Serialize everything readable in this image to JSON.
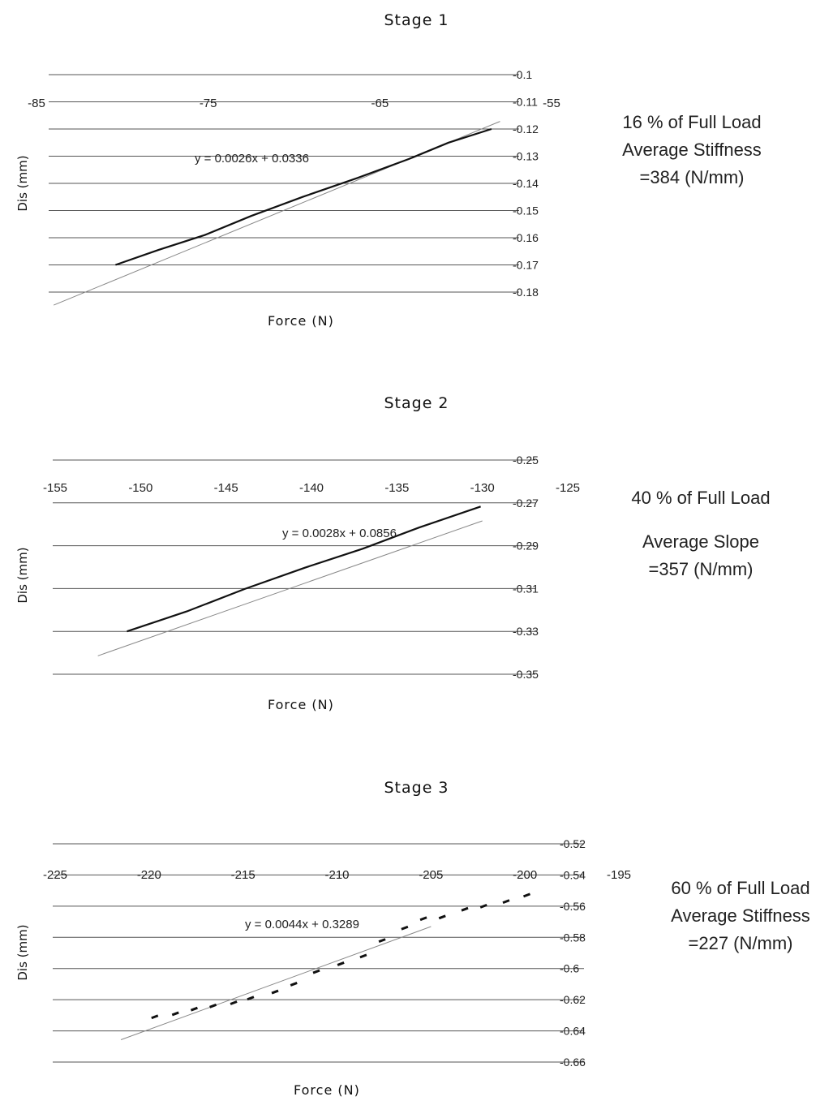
{
  "chart_data": [
    {
      "type": "line",
      "title": "Stage 1",
      "xlabel": "Force  (N)",
      "ylabel": "Dis (mm)",
      "xlim": [
        -85,
        -55
      ],
      "ylim": [
        -0.18,
        -0.1
      ],
      "x_ticks": [
        "-85",
        "-75",
        "-65",
        "-55"
      ],
      "y_ticks": [
        "-0.1",
        "-0.11",
        "-0.12",
        "-0.13",
        "-0.14",
        "-0.15",
        "-0.16",
        "-0.17",
        "-0.18"
      ],
      "trendline_label": "y = 0.0026x + 0.0336",
      "trendline": {
        "slope": 0.0026,
        "intercept": 0.0336,
        "x": [
          -84,
          -58
        ]
      },
      "series": [
        {
          "x": [
            -80.4,
            -77.9,
            -75.2,
            -72.5,
            -69.5,
            -66.3,
            -63.3,
            -61.0,
            -58.5
          ],
          "values": [
            -0.17,
            -0.1645,
            -0.159,
            -0.152,
            -0.145,
            -0.138,
            -0.131,
            -0.125,
            -0.12
          ]
        }
      ]
    },
    {
      "type": "line",
      "title": "Stage 2",
      "xlabel": "Force  (N)",
      "ylabel": "Dis (mm)",
      "xlim": [
        -155,
        -125
      ],
      "ylim": [
        -0.35,
        -0.25
      ],
      "x_ticks": [
        "-155",
        "-150",
        "-145",
        "-140",
        "-135",
        "-130",
        "-125"
      ],
      "y_ticks": [
        "-0.25",
        "-0.27",
        "-0.29",
        "-0.31",
        "-0.33",
        "-0.35"
      ],
      "trendline_label": "y = 0.0028x + 0.0856",
      "trendline": {
        "slope": 0.0028,
        "intercept": 0.0856,
        "x": [
          -152.5,
          -130
        ]
      },
      "series": [
        {
          "x": [
            -150.8,
            -147.3,
            -143.9,
            -140.4,
            -137.0,
            -133.7,
            -130.1
          ],
          "values": [
            -0.33,
            -0.3207,
            -0.3102,
            -0.3003,
            -0.2914,
            -0.2815,
            -0.2717
          ]
        }
      ]
    },
    {
      "type": "scatter",
      "title": "Stage 3",
      "xlabel": "Force  (N)",
      "ylabel": "Dis (mm)",
      "xlim": [
        -225,
        -195
      ],
      "ylim": [
        -0.66,
        -0.52
      ],
      "x_ticks": [
        "-225",
        "-220",
        "-215",
        "-210",
        "-205",
        "-200",
        "-195"
      ],
      "y_ticks": [
        "-0.52",
        "-0.54",
        "-0.56",
        "-0.58",
        "-0.6",
        "-0.62",
        "-0.64",
        "-0.66"
      ],
      "trendline_label": "y = 0.0044x + 0.3289",
      "trendline": {
        "slope": 0.0044,
        "intercept": 0.3289,
        "x": [
          -221.5,
          -205
        ]
      },
      "series": [
        {
          "x": [
            -219.7,
            -218.6,
            -217.6,
            -216.6,
            -215.5,
            -214.6,
            -213.3,
            -212.3,
            -211.1,
            -209.8,
            -208.6,
            -207.6,
            -206.4,
            -205.4,
            -204.4,
            -203.2,
            -202.2,
            -201.0,
            -199.9
          ],
          "values": [
            -0.631,
            -0.629,
            -0.626,
            -0.624,
            -0.622,
            -0.619,
            -0.615,
            -0.61,
            -0.602,
            -0.597,
            -0.592,
            -0.582,
            -0.574,
            -0.568,
            -0.567,
            -0.562,
            -0.56,
            -0.557,
            -0.553
          ]
        }
      ]
    }
  ],
  "notes": [
    {
      "lines": [
        "16 % of Full Load",
        "Average Stiffness",
        "=384 (N/mm)"
      ]
    },
    {
      "lines": [
        "40 % of Full Load",
        "",
        "Average Slope",
        "=357 (N/mm)"
      ]
    },
    {
      "lines": [
        "60 % of Full Load",
        "Average Stiffness",
        "=227 (N/mm)"
      ]
    }
  ]
}
